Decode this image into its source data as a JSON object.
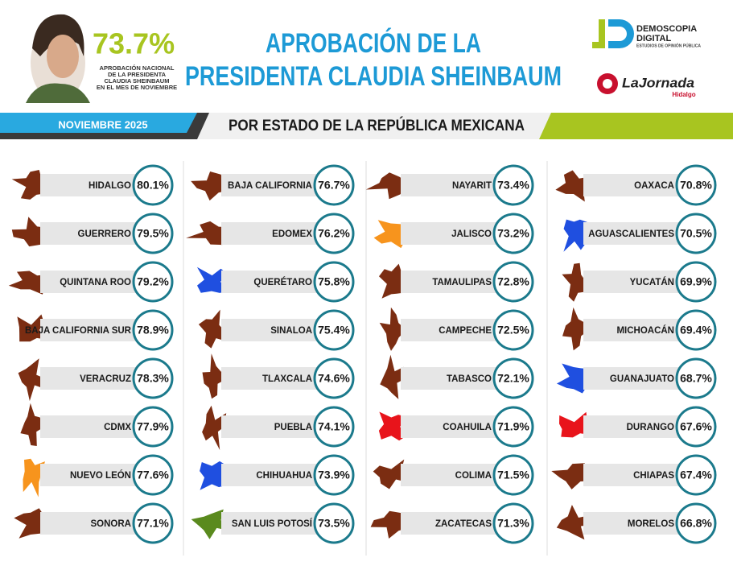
{
  "header": {
    "national_value": "73.7%",
    "national_caption": [
      "APROBACIÓN NACIONAL",
      "DE LA PRESIDENTA",
      "CLAUDIA SHEINBAUM",
      "EN EL MES DE NOVIEMBRE"
    ],
    "title": [
      "APROBACIÓN DE LA",
      "PRESIDENTA CLAUDIA SHEINBAUM"
    ],
    "logo_name": "DEMOSCOPIA",
    "logo_name2": "DIGITAL",
    "logo_tagline": "ESTUDIOS DE OPINIÓN PÚBLICA",
    "partner": "LaJornada",
    "partner_sub": "Hidalgo"
  },
  "banner": {
    "date": "NOVIEMBRE 2025",
    "subtitle": "POR ESTADO DE LA REPÚBLICA MEXICANA"
  },
  "states": [
    {
      "name": "HIDALGO",
      "approval": "80.1%",
      "color": "#7b2d12"
    },
    {
      "name": "GUERRERO",
      "approval": "79.5%",
      "color": "#7b2d12"
    },
    {
      "name": "QUINTANA ROO",
      "approval": "79.2%",
      "color": "#7b2d12"
    },
    {
      "name": "BAJA CALIFORNIA SUR",
      "approval": "78.9%",
      "color": "#7b2d12"
    },
    {
      "name": "VERACRUZ",
      "approval": "78.3%",
      "color": "#7b2d12"
    },
    {
      "name": "CDMX",
      "approval": "77.9%",
      "color": "#7b2d12"
    },
    {
      "name": "NUEVO LEÓN",
      "approval": "77.6%",
      "color": "#f7941d"
    },
    {
      "name": "SONORA",
      "approval": "77.1%",
      "color": "#7b2d12"
    },
    {
      "name": "BAJA CALIFORNIA",
      "approval": "76.7%",
      "color": "#7b2d12"
    },
    {
      "name": "EDOMEX",
      "approval": "76.2%",
      "color": "#7b2d12"
    },
    {
      "name": "QUERÉTARO",
      "approval": "75.8%",
      "color": "#1f4fe0"
    },
    {
      "name": "SINALOA",
      "approval": "75.4%",
      "color": "#7b2d12"
    },
    {
      "name": "TLAXCALA",
      "approval": "74.6%",
      "color": "#7b2d12"
    },
    {
      "name": "PUEBLA",
      "approval": "74.1%",
      "color": "#7b2d12"
    },
    {
      "name": "CHIHUAHUA",
      "approval": "73.9%",
      "color": "#1f4fe0"
    },
    {
      "name": "SAN LUIS POTOSÍ",
      "approval": "73.5%",
      "color": "#5a8a1e"
    },
    {
      "name": "NAYARIT",
      "approval": "73.4%",
      "color": "#7b2d12"
    },
    {
      "name": "JALISCO",
      "approval": "73.2%",
      "color": "#f7941d"
    },
    {
      "name": "TAMAULIPAS",
      "approval": "72.8%",
      "color": "#7b2d12"
    },
    {
      "name": "CAMPECHE",
      "approval": "72.5%",
      "color": "#7b2d12"
    },
    {
      "name": "TABASCO",
      "approval": "72.1%",
      "color": "#7b2d12"
    },
    {
      "name": "COAHUILA",
      "approval": "71.9%",
      "color": "#e8141b"
    },
    {
      "name": "COLIMA",
      "approval": "71.5%",
      "color": "#7b2d12"
    },
    {
      "name": "ZACATECAS",
      "approval": "71.3%",
      "color": "#7b2d12"
    },
    {
      "name": "OAXACA",
      "approval": "70.8%",
      "color": "#7b2d12"
    },
    {
      "name": "AGUASCALIENTES",
      "approval": "70.5%",
      "color": "#1f4fe0"
    },
    {
      "name": "YUCATÁN",
      "approval": "69.9%",
      "color": "#7b2d12"
    },
    {
      "name": "MICHOACÁN",
      "approval": "69.4%",
      "color": "#7b2d12"
    },
    {
      "name": "GUANAJUATO",
      "approval": "68.7%",
      "color": "#1f4fe0"
    },
    {
      "name": "DURANGO",
      "approval": "67.6%",
      "color": "#e8141b"
    },
    {
      "name": "CHIAPAS",
      "approval": "67.4%",
      "color": "#7b2d12"
    },
    {
      "name": "MORELOS",
      "approval": "66.8%",
      "color": "#7b2d12"
    }
  ]
}
